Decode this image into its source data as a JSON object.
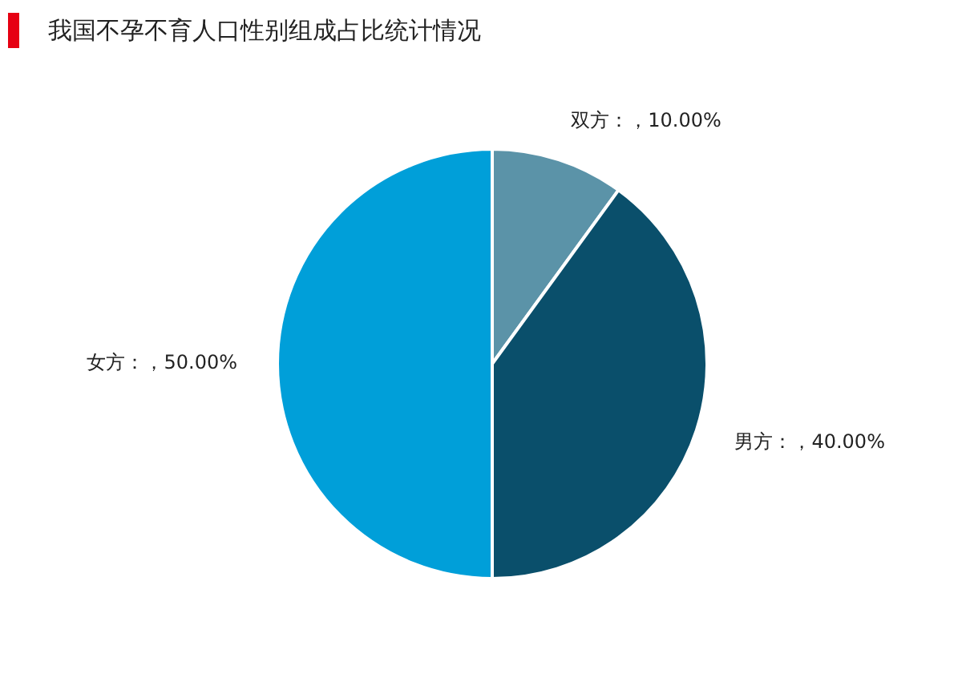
{
  "chart_data": {
    "type": "pie",
    "title": "我国不孕不育人口性别组成占比统计情况",
    "categories": [
      "双方",
      "男方",
      "女方"
    ],
    "values": [
      10,
      40,
      50
    ],
    "colors": [
      "#5b93a8",
      "#0a4f6b",
      "#009fd9"
    ],
    "value_labels": [
      "：，10.00%",
      "：，40.00%",
      "：，50.00%"
    ],
    "legend": false
  }
}
